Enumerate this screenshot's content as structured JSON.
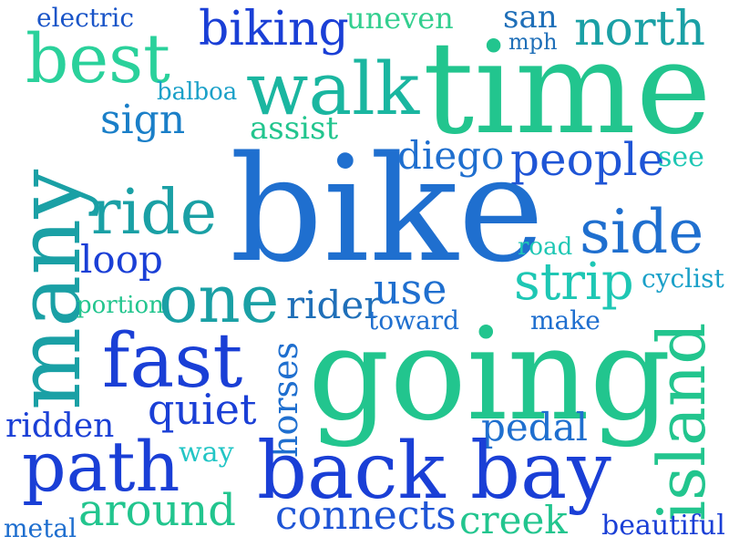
{
  "palette": {
    "royal_blue": "#1a3fd6",
    "azure": "#1f6fcf",
    "teal": "#1aa0a5",
    "green": "#22c58e",
    "aqua": "#1ec7b4"
  },
  "words": [
    {
      "id": "electric",
      "text": "electric",
      "color": "#1a55c8"
    },
    {
      "id": "biking",
      "text": "biking",
      "color": "#1a3fd6"
    },
    {
      "id": "uneven",
      "text": "uneven",
      "color": "#33cf8f"
    },
    {
      "id": "san",
      "text": "san",
      "color": "#1f6fb8"
    },
    {
      "id": "mph",
      "text": "mph",
      "color": "#1f6fb8"
    },
    {
      "id": "north",
      "text": "north",
      "color": "#1aa0a5"
    },
    {
      "id": "best",
      "text": "best",
      "color": "#2ad19b"
    },
    {
      "id": "walk",
      "text": "walk",
      "color": "#1ab6a0"
    },
    {
      "id": "time",
      "text": "time",
      "color": "#22c58e"
    },
    {
      "id": "balboa",
      "text": "balboa",
      "color": "#1aa0c8"
    },
    {
      "id": "sign",
      "text": "sign",
      "color": "#1a7fc8"
    },
    {
      "id": "assist",
      "text": "assist",
      "color": "#22c58e"
    },
    {
      "id": "many",
      "text": "many",
      "color": "#1aa0a5"
    },
    {
      "id": "diego",
      "text": "diego",
      "color": "#1f6fcf"
    },
    {
      "id": "people",
      "text": "people",
      "color": "#1f55d6"
    },
    {
      "id": "see",
      "text": "see",
      "color": "#1ec7b4"
    },
    {
      "id": "ride",
      "text": "ride",
      "color": "#1aa0a5"
    },
    {
      "id": "bike",
      "text": "bike",
      "color": "#1f6fcf"
    },
    {
      "id": "side",
      "text": "side",
      "color": "#1f6fcf"
    },
    {
      "id": "road",
      "text": "road",
      "color": "#1ec7b4"
    },
    {
      "id": "loop",
      "text": "loop",
      "color": "#1a3fd6"
    },
    {
      "id": "strip",
      "text": "strip",
      "color": "#1ec7b4"
    },
    {
      "id": "cyclist",
      "text": "cyclist",
      "color": "#1aa0c8"
    },
    {
      "id": "portion",
      "text": "portion",
      "color": "#22c58e"
    },
    {
      "id": "one",
      "text": "one",
      "color": "#1aa0a5"
    },
    {
      "id": "rider",
      "text": "rider",
      "color": "#1f6fb8"
    },
    {
      "id": "use",
      "text": "use",
      "color": "#1f6fcf"
    },
    {
      "id": "toward",
      "text": "toward",
      "color": "#1f6fcf"
    },
    {
      "id": "make",
      "text": "make",
      "color": "#1f6fcf"
    },
    {
      "id": "island",
      "text": "island",
      "color": "#22c58e"
    },
    {
      "id": "fast",
      "text": "fast",
      "color": "#1a3fd6"
    },
    {
      "id": "going",
      "text": "going",
      "color": "#22c58e"
    },
    {
      "id": "horses",
      "text": "horses",
      "color": "#1f6fcf"
    },
    {
      "id": "quiet",
      "text": "quiet",
      "color": "#1a3fd6"
    },
    {
      "id": "ridden",
      "text": "ridden",
      "color": "#1a3fd6"
    },
    {
      "id": "pedal",
      "text": "pedal",
      "color": "#1f6fcf"
    },
    {
      "id": "path",
      "text": "path",
      "color": "#1a3fd6"
    },
    {
      "id": "way",
      "text": "way",
      "color": "#22c5c5"
    },
    {
      "id": "back_bay",
      "text": "back bay",
      "color": "#1a3fd6"
    },
    {
      "id": "around",
      "text": "around",
      "color": "#22c58e"
    },
    {
      "id": "connects",
      "text": "connects",
      "color": "#1f55d6"
    },
    {
      "id": "creek",
      "text": "creek",
      "color": "#22c58e"
    },
    {
      "id": "metal",
      "text": "metal",
      "color": "#1f6fcf"
    },
    {
      "id": "beautiful",
      "text": "beautiful",
      "color": "#1a3fd6"
    }
  ]
}
